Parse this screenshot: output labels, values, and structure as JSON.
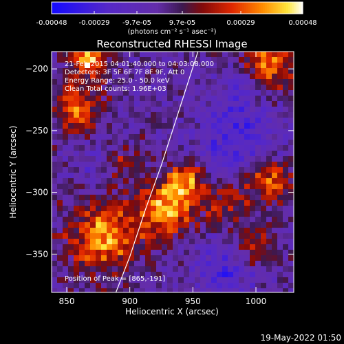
{
  "chart_data": {
    "type": "heatmap",
    "title": "Reconstructed RHESSI Image",
    "xlabel": "Heliocentric X (arcsec)",
    "ylabel": "Heliocentric Y (arcsec)",
    "xlim": [
      838,
      1030
    ],
    "ylim": [
      -381,
      -186
    ],
    "x_ticks": [
      850,
      900,
      950,
      1000
    ],
    "y_ticks": [
      -200,
      -250,
      -300,
      -350
    ],
    "colorbar": {
      "ticks": [
        "-0.00048",
        "-0.00029",
        "-9.7e-05",
        "9.7e-05",
        "0.00029",
        "0.00048"
      ],
      "tick_values": [
        -0.00048,
        -0.00029,
        -9.7e-05,
        9.7e-05,
        0.00029,
        0.00048
      ],
      "unit_label": "(photons cm⁻² s⁻¹ asec⁻²)",
      "range": [
        -0.00048,
        0.00048
      ]
    },
    "info_lines": [
      "21-Feb-2015 04:01:40.000 to 04:03:08.000",
      "Detectors: 3F 5F 6F 7F 8F 9F, Att 0",
      "Energy Range: 25.0 - 50.0 keV",
      "Clean     Total counts: 1.96E+03"
    ],
    "peak_label": "Position of Peak = [865,-191]",
    "peak": [
      865,
      -191
    ],
    "limb_curve": [
      [
        889,
        -381
      ],
      [
        900,
        -352
      ],
      [
        912,
        -315
      ],
      [
        925,
        -278
      ],
      [
        937,
        -240
      ],
      [
        948,
        -205
      ],
      [
        954,
        -186
      ]
    ],
    "bright_sources": [
      {
        "x": 930,
        "y": -312,
        "sigma": 16,
        "amp": 0.00042
      },
      {
        "x": 945,
        "y": -290,
        "sigma": 10,
        "amp": 0.00036
      },
      {
        "x": 880,
        "y": -335,
        "sigma": 20,
        "amp": 0.0004
      },
      {
        "x": 858,
        "y": -232,
        "sigma": 14,
        "amp": 0.00034
      },
      {
        "x": 868,
        "y": -192,
        "sigma": 10,
        "amp": 0.00048
      },
      {
        "x": 1010,
        "y": -195,
        "sigma": 14,
        "amp": 0.0004
      },
      {
        "x": 1010,
        "y": -290,
        "sigma": 13,
        "amp": 0.00034
      },
      {
        "x": 892,
        "y": -275,
        "sigma": 11,
        "amp": 0.00025
      },
      {
        "x": 978,
        "y": -310,
        "sigma": 12,
        "amp": 0.00024
      },
      {
        "x": 1000,
        "y": -345,
        "sigma": 12,
        "amp": 0.00022
      }
    ],
    "dark_sources": [
      {
        "x": 985,
        "y": -255,
        "sigma": 22,
        "amp": -0.00022
      },
      {
        "x": 880,
        "y": -275,
        "sigma": 15,
        "amp": -0.00014
      },
      {
        "x": 975,
        "y": -365,
        "sigma": 18,
        "amp": -0.0002
      },
      {
        "x": 990,
        "y": -212,
        "sigma": 10,
        "amp": -0.00016
      }
    ]
  },
  "footer": {
    "timestamp": "19-May-2022 01:50"
  }
}
